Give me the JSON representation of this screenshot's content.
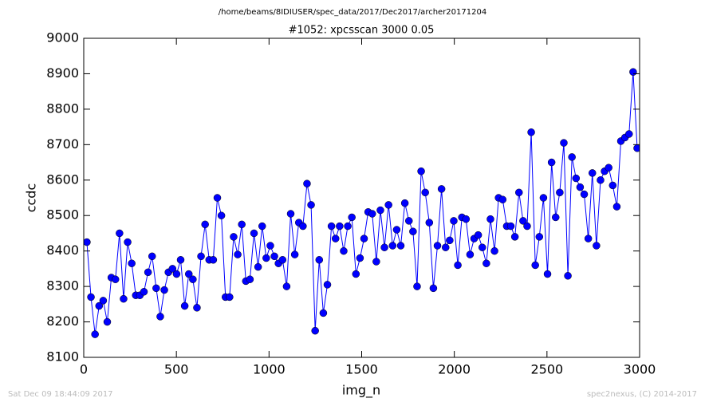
{
  "chart_data": {
    "type": "line",
    "suptitle": "/home/beams/8IDIUSER/spec_data/2017/Dec2017/archer20171204",
    "title": "#1052: xpcsscan 3000 0.05",
    "x_label": "img_n",
    "y_label": "ccdc",
    "footer_left": "Sat Dec 09 18:44:09 2017",
    "footer_right": "spec2nexus, (C) 2014-2017",
    "color": "#0000ff",
    "x": [
      17,
      39,
      61,
      83,
      105,
      127,
      149,
      171,
      193,
      215,
      237,
      259,
      281,
      303,
      325,
      347,
      369,
      391,
      413,
      435,
      457,
      479,
      501,
      523,
      545,
      567,
      589,
      611,
      633,
      655,
      677,
      699,
      721,
      743,
      765,
      787,
      809,
      831,
      853,
      875,
      897,
      919,
      941,
      963,
      985,
      1007,
      1029,
      1051,
      1073,
      1095,
      1117,
      1139,
      1161,
      1183,
      1205,
      1227,
      1249,
      1271,
      1293,
      1315,
      1337,
      1359,
      1381,
      1403,
      1425,
      1447,
      1469,
      1491,
      1513,
      1535,
      1557,
      1579,
      1601,
      1623,
      1645,
      1667,
      1689,
      1711,
      1733,
      1755,
      1777,
      1799,
      1821,
      1843,
      1865,
      1887,
      1909,
      1931,
      1953,
      1975,
      1997,
      2019,
      2041,
      2063,
      2085,
      2107,
      2129,
      2151,
      2173,
      2195,
      2217,
      2239,
      2261,
      2283,
      2305,
      2327,
      2349,
      2371,
      2393,
      2415,
      2437,
      2459,
      2481,
      2503,
      2525,
      2547,
      2569,
      2591,
      2613,
      2635,
      2657,
      2679,
      2701,
      2723,
      2745,
      2767,
      2789,
      2811,
      2833,
      2855,
      2877,
      2899,
      2921,
      2943,
      2965,
      2987
    ],
    "values": [
      8425,
      8270,
      8165,
      8245,
      8260,
      8200,
      8325,
      8320,
      8450,
      8265,
      8425,
      8365,
      8275,
      8275,
      8285,
      8340,
      8385,
      8295,
      8215,
      8290,
      8340,
      8350,
      8335,
      8375,
      8245,
      8335,
      8320,
      8240,
      8385,
      8475,
      8375,
      8375,
      8550,
      8500,
      8270,
      8270,
      8440,
      8390,
      8475,
      8315,
      8320,
      8450,
      8355,
      8470,
      8380,
      8415,
      8385,
      8365,
      8375,
      8300,
      8505,
      8390,
      8480,
      8470,
      8590,
      8530,
      8175,
      8375,
      8225,
      8305,
      8470,
      8435,
      8470,
      8400,
      8470,
      8495,
      8335,
      8380,
      8435,
      8510,
      8505,
      8370,
      8515,
      8410,
      8530,
      8415,
      8460,
      8415,
      8535,
      8485,
      8455,
      8300,
      8625,
      8565,
      8480,
      8295,
      8415,
      8575,
      8410,
      8430,
      8485,
      8360,
      8495,
      8490,
      8390,
      8435,
      8445,
      8410,
      8365,
      8490,
      8400,
      8550,
      8545,
      8470,
      8470,
      8440,
      8565,
      8485,
      8470,
      8735,
      8360,
      8440,
      8550,
      8335,
      8650,
      8495,
      8565,
      8705,
      8330,
      8665,
      8605,
      8580,
      8560,
      8435,
      8620,
      8415,
      8600,
      8625,
      8635,
      8585,
      8525,
      8710,
      8720,
      8730,
      8905,
      8690
    ],
    "xlim": [
      0,
      3000
    ],
    "xticks": [
      0,
      500,
      1000,
      1500,
      2000,
      2500,
      3000
    ],
    "ylim": [
      8100,
      9000
    ],
    "yticks": [
      8100,
      8200,
      8300,
      8400,
      8500,
      8600,
      8700,
      8800,
      8900,
      9000
    ]
  }
}
